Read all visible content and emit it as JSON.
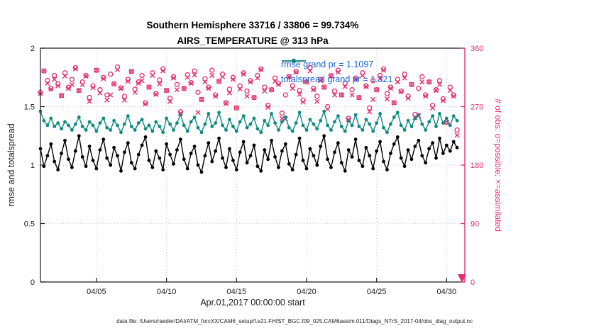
{
  "figure": {
    "title_line1": "Southern Hemisphere 33716 / 33806 = 99.734%",
    "title_line2": "AIRS_TEMPERATURE @ 313 hPa",
    "xlabel": "Apr.01,2017 00:00:00 start",
    "ylabel_left": "rmse and totalspread",
    "ylabel_right": "# of obs: o=possible; ×=assimilated",
    "caption": "data file: /Users/raeder/DAI/ATM_forcXX/CAM6_setup/f.e21.FHIST_BGC.f09_025.CAM6assim.011/Diags_NTrS_2017-04/obs_diag_output.nc",
    "legend": [
      {
        "label": "rmse grand pr = 1.1097",
        "color": "#000000",
        "text_color": "#1a64d8"
      },
      {
        "label": "totalspread grand pr = 1.321",
        "color": "#0e8b82",
        "text_color": "#1a64d8"
      }
    ],
    "colors": {
      "rmse": "#000000",
      "totalspread": "#0e8b82",
      "obs": "#e62c6d",
      "legend_text": "#1a64d8",
      "axis": "#1a1a1a",
      "grid": "#c8c8c8"
    },
    "icons": {
      "offscale_arrow": "pink down arrow at bottom-right axis corner"
    }
  },
  "chart_data": {
    "type": "line",
    "title": "Southern Hemisphere 33716 / 33806 = 99.734% | AIRS_TEMPERATURE @ 313 hPa",
    "x": {
      "start_day": 1,
      "step_days": 0.25,
      "count": 120
    },
    "x_range": [
      1,
      31.3
    ],
    "x_ticks": {
      "values": [
        5,
        10,
        15,
        20,
        25,
        30
      ],
      "labels": [
        "04/05",
        "04/10",
        "04/15",
        "04/20",
        "04/25",
        "04/30"
      ]
    },
    "left_axis": {
      "label": "rmse and totalspread",
      "range": [
        0,
        2
      ],
      "ticks": [
        0,
        0.5,
        1,
        1.5,
        2
      ],
      "labels": [
        "0",
        "0.5",
        "1",
        "1.5",
        "2"
      ]
    },
    "right_axis": {
      "label": "# of obs: o=possible; ×=assimilated",
      "range": [
        0,
        360
      ],
      "ticks": [
        0,
        90,
        180,
        270,
        360
      ],
      "labels": [
        "0",
        "90",
        "180",
        "270",
        "360"
      ]
    },
    "grid": true,
    "legend_position": "top-inside",
    "series": [
      {
        "name": "rmse",
        "axis": "left",
        "style": "line-dot",
        "color": "#000000",
        "grand_mean": 1.1097,
        "values": [
          1.14,
          0.99,
          1.08,
          1.18,
          1.03,
          0.96,
          1.1,
          1.21,
          1.05,
          0.98,
          1.12,
          1.25,
          1.07,
          0.99,
          1.16,
          1.04,
          0.97,
          1.13,
          1.22,
          1.06,
          1.0,
          1.15,
          1.08,
          0.95,
          1.11,
          1.19,
          1.02,
          0.97,
          1.09,
          1.17,
          1.24,
          1.04,
          0.98,
          1.12,
          1.06,
          0.96,
          1.18,
          1.09,
          1.01,
          1.13,
          1.22,
          1.05,
          0.97,
          1.1,
          1.16,
          1.0,
          0.94,
          1.08,
          1.19,
          1.03,
          1.12,
          1.23,
          1.06,
          0.98,
          1.14,
          1.04,
          0.96,
          1.11,
          1.2,
          1.02,
          1.08,
          1.17,
          0.99,
          0.95,
          1.13,
          1.05,
          1.21,
          1.07,
          0.98,
          1.12,
          1.18,
          1.01,
          0.96,
          1.09,
          1.23,
          1.04,
          0.97,
          1.14,
          1.08,
          1.0,
          1.16,
          1.25,
          1.05,
          0.98,
          1.11,
          1.19,
          1.02,
          0.95,
          1.13,
          1.07,
          1.22,
          1.04,
          0.99,
          1.15,
          1.08,
          0.97,
          1.12,
          1.2,
          1.03,
          0.96,
          1.1,
          1.18,
          1.24,
          1.06,
          0.99,
          1.13,
          1.05,
          1.16,
          1.21,
          1.08,
          1.02,
          1.14,
          1.19,
          1.06,
          1.23,
          1.1,
          1.17,
          1.12,
          1.2,
          1.15
        ]
      },
      {
        "name": "totalspread",
        "axis": "left",
        "style": "line-dot",
        "color": "#0e8b82",
        "grand_mean": 1.321,
        "values": [
          1.46,
          1.38,
          1.34,
          1.4,
          1.33,
          1.36,
          1.31,
          1.37,
          1.34,
          1.3,
          1.35,
          1.41,
          1.33,
          1.3,
          1.37,
          1.34,
          1.29,
          1.36,
          1.4,
          1.32,
          1.3,
          1.38,
          1.34,
          1.28,
          1.35,
          1.42,
          1.33,
          1.3,
          1.36,
          1.39,
          1.31,
          1.34,
          1.29,
          1.37,
          1.33,
          1.28,
          1.4,
          1.35,
          1.3,
          1.36,
          1.43,
          1.34,
          1.29,
          1.37,
          1.41,
          1.32,
          1.28,
          1.35,
          1.44,
          1.33,
          1.36,
          1.45,
          1.34,
          1.3,
          1.39,
          1.33,
          1.29,
          1.37,
          1.42,
          1.32,
          1.35,
          1.4,
          1.31,
          1.28,
          1.38,
          1.34,
          1.44,
          1.36,
          1.3,
          1.37,
          1.41,
          1.32,
          1.29,
          1.36,
          1.45,
          1.34,
          1.3,
          1.39,
          1.35,
          1.31,
          1.38,
          1.46,
          1.34,
          1.3,
          1.37,
          1.42,
          1.33,
          1.29,
          1.38,
          1.34,
          1.43,
          1.33,
          1.3,
          1.39,
          1.35,
          1.29,
          1.36,
          1.44,
          1.32,
          1.28,
          1.35,
          1.41,
          1.45,
          1.34,
          1.3,
          1.38,
          1.33,
          1.4,
          1.43,
          1.35,
          1.3,
          1.37,
          1.42,
          1.33,
          1.44,
          1.36,
          1.4,
          1.34,
          1.42,
          1.38
        ]
      },
      {
        "name": "obs_possible",
        "axis": "right",
        "style": "marker",
        "marker": "o",
        "color": "#e62c6d",
        "values": [
          292,
          325,
          310,
          298,
          318,
          305,
          287,
          322,
          300,
          312,
          330,
          295,
          308,
          318,
          284,
          302,
          326,
          296,
          315,
          288,
          320,
          305,
          331,
          299,
          286,
          312,
          324,
          297,
          308,
          318,
          276,
          300,
          322,
          290,
          311,
          328,
          295,
          283,
          316,
          304,
          262,
          298,
          319,
          307,
          325,
          292,
          281,
          313,
          300,
          326,
          288,
          309,
          320,
          276,
          297,
          315,
          268,
          302,
          322,
          294,
          310,
          284,
          318,
          328,
          300,
          272,
          296,
          314,
          306,
          260,
          288,
          316,
          302,
          324,
          295,
          280,
          308,
          330,
          298,
          286,
          312,
          300,
          270,
          318,
          294,
          326,
          288,
          306,
          252,
          296,
          314,
          284,
          322,
          302,
          268,
          310,
          296,
          318,
          328,
          290,
          300,
          276,
          312,
          294,
          320,
          286,
          304,
          258,
          298,
          316,
          288,
          308,
          272,
          296,
          310,
          282,
          246,
          300,
          288,
          234
        ]
      },
      {
        "name": "obs_assimilated",
        "axis": "right",
        "style": "marker",
        "marker": "x",
        "color": "#e62c6d",
        "values": [
          290,
          325,
          306,
          297,
          312,
          302,
          287,
          317,
          298,
          304,
          328,
          295,
          304,
          317,
          278,
          299,
          326,
          291,
          313,
          280,
          288,
          305,
          327,
          298,
          280,
          309,
          324,
          292,
          306,
          310,
          274,
          300,
          318,
          289,
          305,
          325,
          295,
          278,
          314,
          296,
          260,
          298,
          315,
          306,
          319,
          261,
          281,
          308,
          298,
          318,
          286,
          309,
          316,
          275,
          291,
          312,
          268,
          297,
          320,
          286,
          308,
          284,
          314,
          327,
          294,
          269,
          296,
          309,
          304,
          252,
          251,
          316,
          298,
          323,
          289,
          277,
          308,
          325,
          296,
          278,
          310,
          300,
          266,
          317,
          288,
          323,
          288,
          301,
          250,
          288,
          312,
          284,
          318,
          301,
          262,
          281,
          296,
          313,
          326,
          282,
          298,
          276,
          308,
          293,
          314,
          283,
          304,
          253,
          256,
          308,
          286,
          308,
          268,
          295,
          304,
          279,
          246,
          295,
          286,
          226
        ]
      }
    ]
  }
}
